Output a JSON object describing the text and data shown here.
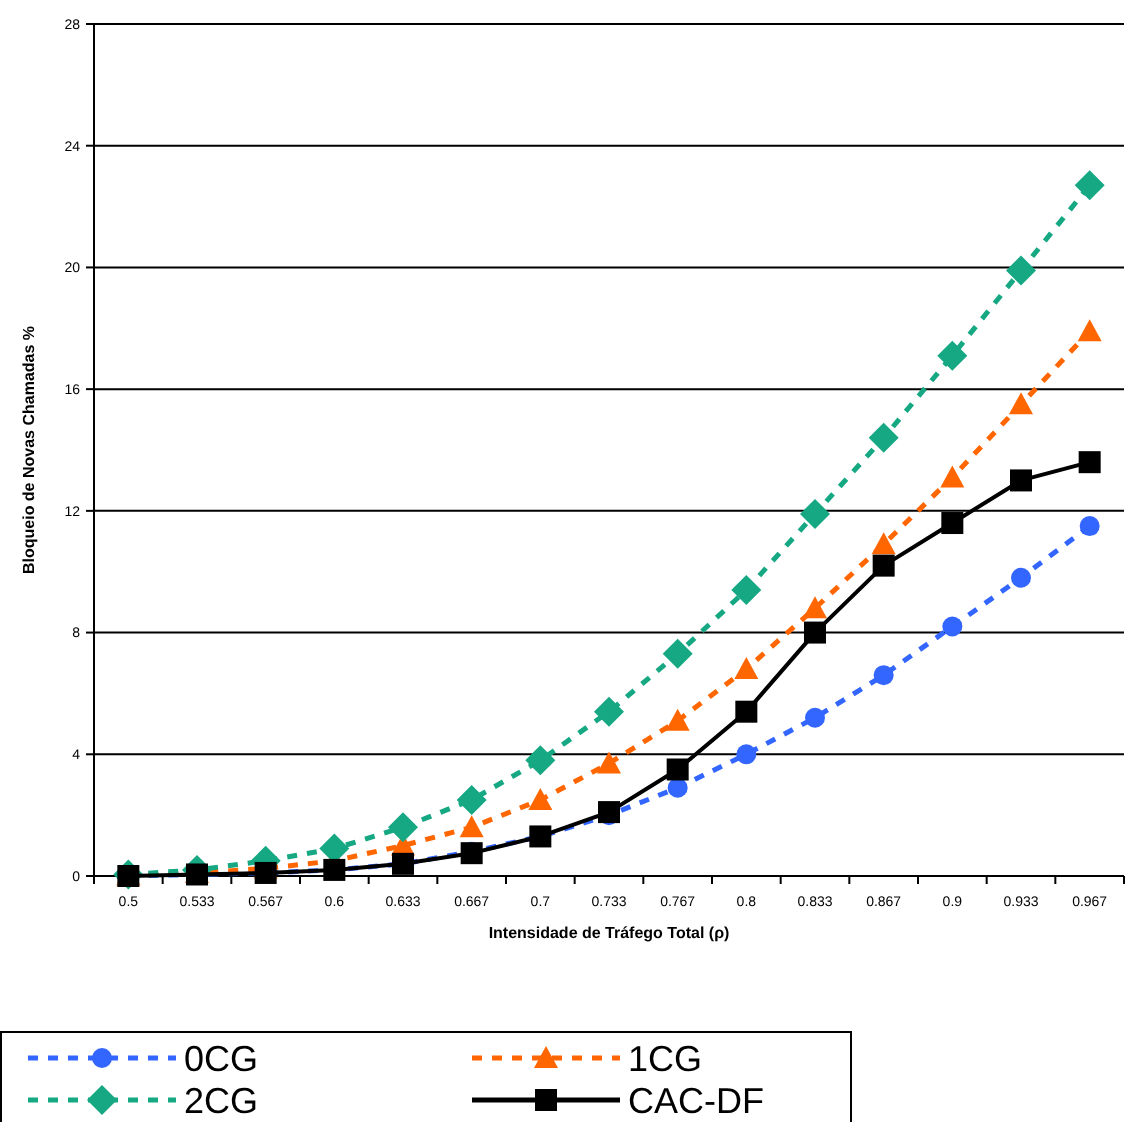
{
  "chart_data": {
    "type": "line",
    "xlabel": "Intensidade de Tráfego Total (ρ)",
    "ylabel": "Bloqueio de Novas Chamadas %",
    "categories": [
      "0.5",
      "0.533",
      "0.567",
      "0.6",
      "0.633",
      "0.667",
      "0.7",
      "0.733",
      "0.767",
      "0.8",
      "0.833",
      "0.867",
      "0.9",
      "0.933",
      "0.967"
    ],
    "ylim": [
      0,
      28
    ],
    "yticks": [
      0,
      4,
      8,
      12,
      16,
      20,
      24,
      28
    ],
    "grid": "y",
    "legend": "bottom",
    "series": [
      {
        "name": "0CG",
        "color": "#3366ff",
        "marker": "circle",
        "line_style": "dashed",
        "values": [
          0,
          0.05,
          0.1,
          0.2,
          0.4,
          0.8,
          1.3,
          2.0,
          2.9,
          4.0,
          5.2,
          6.6,
          8.2,
          9.8,
          11.5
        ]
      },
      {
        "name": "1CG",
        "color": "#ff6600",
        "marker": "triangle",
        "line_style": "dashed",
        "values": [
          0.02,
          0.1,
          0.25,
          0.5,
          1.0,
          1.6,
          2.5,
          3.7,
          5.1,
          6.8,
          8.8,
          10.9,
          13.1,
          15.5,
          17.9
        ]
      },
      {
        "name": "2CG",
        "color": "#16a883",
        "marker": "diamond",
        "line_style": "dashed",
        "values": [
          0.05,
          0.2,
          0.5,
          0.9,
          1.6,
          2.5,
          3.8,
          5.4,
          7.3,
          9.4,
          11.9,
          14.4,
          17.1,
          19.9,
          22.7
        ]
      },
      {
        "name": "CAC-DF",
        "color": "#000000",
        "marker": "square",
        "line_style": "solid",
        "values": [
          0,
          0.05,
          0.1,
          0.2,
          0.4,
          0.75,
          1.3,
          2.1,
          3.5,
          5.4,
          8.0,
          10.2,
          11.6,
          13.0,
          13.6
        ]
      }
    ]
  }
}
